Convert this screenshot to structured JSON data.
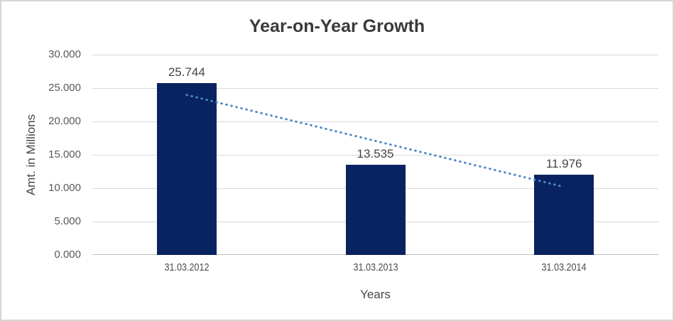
{
  "window": {
    "background_color": "#ffffff",
    "border_color": "#d6d6d6"
  },
  "chart_data": {
    "type": "bar",
    "title": "Year-on-Year Growth",
    "xlabel": "Years",
    "ylabel": "Amt. in Millions",
    "categories": [
      "31.03.2012",
      "31.03.2013",
      "31.03.2014"
    ],
    "values": [
      25.744,
      13.535,
      11.976
    ],
    "value_labels": [
      "25.744",
      "13.535",
      "11.976"
    ],
    "ylim": [
      0,
      30
    ],
    "yticks": [
      {
        "label": "30.000",
        "value": 30
      },
      {
        "label": "25.000",
        "value": 25
      },
      {
        "label": "20.000",
        "value": 20
      },
      {
        "label": "15.000",
        "value": 15
      },
      {
        "label": "10.000",
        "value": 10
      },
      {
        "label": "5.000",
        "value": 5
      },
      {
        "label": "0.000",
        "value": 0
      }
    ],
    "grid": "horizontal",
    "legend": "none",
    "trendline": {
      "type": "linear",
      "style": "dotted",
      "start_value": 23.969,
      "end_value": 10.201,
      "color": "#4e87c7"
    },
    "colors": {
      "bar": "#08235f",
      "gridline": "#d9d9d9",
      "axis_line": "#bfbfbf",
      "title_text": "#3a3a3a",
      "tick_text": "#595959",
      "data_label_text": "#444444"
    }
  }
}
